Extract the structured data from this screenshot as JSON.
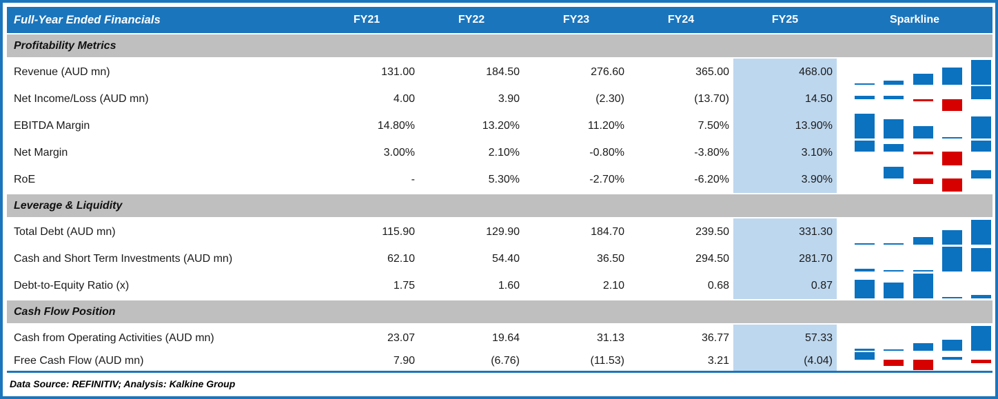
{
  "colors": {
    "header_bg": "#1B75BC",
    "header_text": "#FFFFFF",
    "section_bg": "#BFBFBF",
    "fy25_highlight": "#BDD7EE",
    "sparkline_positive": "#0B72C0",
    "sparkline_negative": "#D60000",
    "frame_border": "#1B75BC",
    "text": "#1A1A1A"
  },
  "header": {
    "title": "Full-Year Ended Financials",
    "columns": [
      "FY21",
      "FY22",
      "FY23",
      "FY24",
      "FY25"
    ],
    "sparkline_label": "Sparkline"
  },
  "chart_data": {
    "type": "table",
    "categories": [
      "FY21",
      "FY22",
      "FY23",
      "FY24",
      "FY25"
    ],
    "highlighted_column": "FY25",
    "sparkline_type": "bar",
    "sections": [
      {
        "title": "Profitability Metrics",
        "rows": [
          {
            "label": "Revenue (AUD mn)",
            "display": [
              "131.00",
              "184.50",
              "276.60",
              "365.00",
              "468.00"
            ],
            "values": [
              131.0,
              184.5,
              276.6,
              365.0,
              468.0
            ]
          },
          {
            "label": "Net Income/Loss (AUD mn)",
            "display": [
              "4.00",
              "3.90",
              "(2.30)",
              "(13.70)",
              "14.50"
            ],
            "values": [
              4.0,
              3.9,
              -2.3,
              -13.7,
              14.5
            ]
          },
          {
            "label": "EBITDA Margin",
            "display": [
              "14.80%",
              "13.20%",
              "11.20%",
              "7.50%",
              "13.90%"
            ],
            "values": [
              14.8,
              13.2,
              11.2,
              7.5,
              13.9
            ]
          },
          {
            "label": "Net Margin",
            "display": [
              "3.00%",
              "2.10%",
              "-0.80%",
              "-3.80%",
              "3.10%"
            ],
            "values": [
              3.0,
              2.1,
              -0.8,
              -3.8,
              3.1
            ]
          },
          {
            "label": "RoE",
            "display": [
              "-",
              "5.30%",
              "-2.70%",
              "-6.20%",
              "3.90%"
            ],
            "values": [
              null,
              5.3,
              -2.7,
              -6.2,
              3.9
            ]
          }
        ]
      },
      {
        "title": "Leverage & Liquidity",
        "rows": [
          {
            "label": "Total Debt (AUD mn)",
            "display": [
              "115.90",
              "129.90",
              "184.70",
              "239.50",
              "331.30"
            ],
            "values": [
              115.9,
              129.9,
              184.7,
              239.5,
              331.3
            ]
          },
          {
            "label": "Cash and Short Term Investments (AUD mn)",
            "display": [
              "62.10",
              "54.40",
              "36.50",
              "294.50",
              "281.70"
            ],
            "values": [
              62.1,
              54.4,
              36.5,
              294.5,
              281.7
            ]
          },
          {
            "label": "Debt-to-Equity Ratio (x)",
            "display": [
              "1.75",
              "1.60",
              "2.10",
              "0.68",
              "0.87"
            ],
            "values": [
              1.75,
              1.6,
              2.1,
              0.68,
              0.87
            ]
          }
        ]
      },
      {
        "title": "Cash Flow Position",
        "rows": [
          {
            "label": "Cash from Operating Activities (AUD mn)",
            "display": [
              "23.07",
              "19.64",
              "31.13",
              "36.77",
              "57.33"
            ],
            "values": [
              23.07,
              19.64,
              31.13,
              36.77,
              57.33
            ]
          },
          {
            "label": "Free Cash Flow (AUD mn)",
            "display": [
              "7.90",
              "(6.76)",
              "(11.53)",
              "3.21",
              "(4.04)"
            ],
            "values": [
              7.9,
              -6.76,
              -11.53,
              3.21,
              -4.04
            ]
          }
        ]
      }
    ]
  },
  "footer": {
    "text": "Data Source: REFINITIV; Analysis: Kalkine Group"
  }
}
